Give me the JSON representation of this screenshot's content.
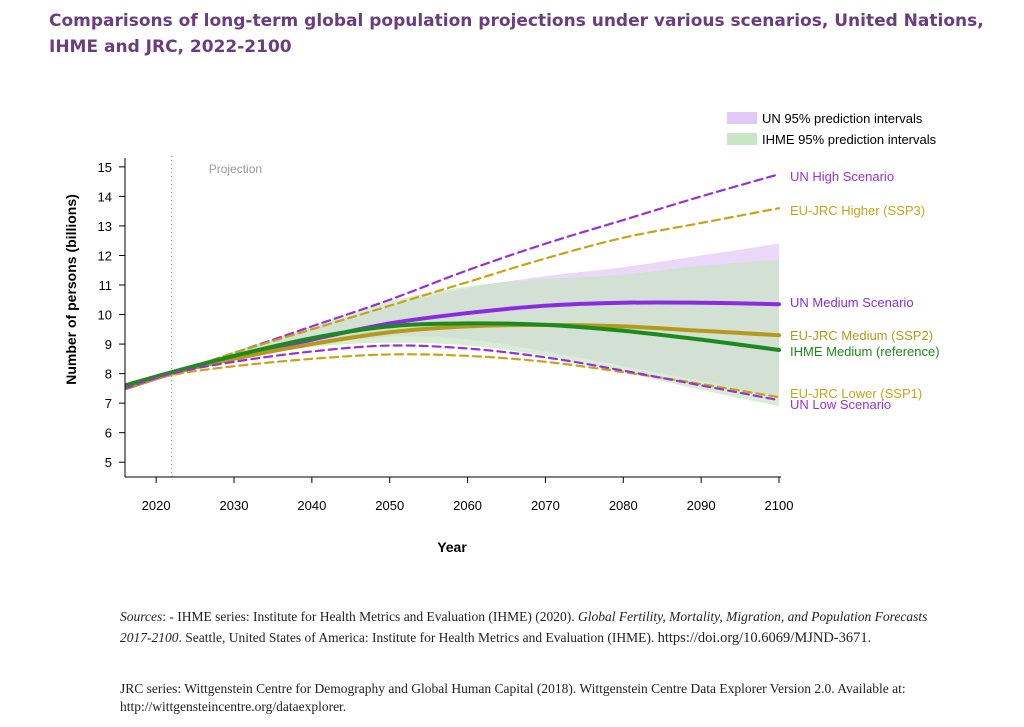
{
  "title": "Comparisons of long-term global population projections under various scenarios, United Nations, IHME and JRC, 2022-2100",
  "chart_data": {
    "type": "line",
    "xlabel": "Year",
    "ylabel": "Number of persons (billions)",
    "xlim": [
      2016,
      2100
    ],
    "ylim": [
      4.5,
      15.3
    ],
    "xticks": [
      2020,
      2030,
      2040,
      2050,
      2060,
      2070,
      2080,
      2090,
      2100
    ],
    "yticks": [
      5,
      6,
      7,
      8,
      9,
      10,
      11,
      12,
      13,
      14,
      15
    ],
    "projection_start": 2022,
    "projection_label": "Projection",
    "legend": [
      {
        "label": "UN 95% prediction intervals",
        "color": "#e2c8f7"
      },
      {
        "label": "IHME 95% prediction intervals",
        "color": "#c7e6c4"
      }
    ],
    "bands": [
      {
        "name": "UN 95% prediction intervals",
        "color": "#e2c8f7",
        "x": [
          2022,
          2030,
          2040,
          2050,
          2060,
          2070,
          2080,
          2090,
          2100
        ],
        "lower": [
          7.95,
          8.45,
          8.95,
          9.25,
          9.15,
          8.75,
          8.25,
          7.75,
          7.2
        ],
        "upper": [
          8.0,
          8.75,
          9.55,
          10.3,
          10.9,
          11.3,
          11.6,
          12.0,
          12.4
        ]
      },
      {
        "name": "IHME 95% prediction intervals",
        "color": "#c7e6c4",
        "x": [
          2022,
          2030,
          2040,
          2050,
          2060,
          2070,
          2080,
          2090,
          2100
        ],
        "lower": [
          7.95,
          8.45,
          8.9,
          9.05,
          8.95,
          8.6,
          8.05,
          7.45,
          6.9
        ],
        "upper": [
          8.0,
          8.75,
          9.6,
          10.45,
          10.95,
          11.2,
          11.35,
          11.65,
          11.85
        ]
      }
    ],
    "series": [
      {
        "name": "UN High Scenario",
        "color": "#9b30d9",
        "style": "dashed",
        "x": [
          2016,
          2022,
          2030,
          2040,
          2050,
          2060,
          2070,
          2080,
          2090,
          2100
        ],
        "y": [
          7.5,
          8.0,
          8.7,
          9.6,
          10.5,
          11.5,
          12.4,
          13.2,
          14.0,
          14.75
        ]
      },
      {
        "name": "EU-JRC Higher (SSP3)",
        "color": "#c8a415",
        "style": "dashed",
        "x": [
          2016,
          2022,
          2030,
          2040,
          2050,
          2060,
          2070,
          2080,
          2090,
          2100
        ],
        "y": [
          7.5,
          8.0,
          8.7,
          9.5,
          10.3,
          11.1,
          11.9,
          12.6,
          13.1,
          13.6
        ]
      },
      {
        "name": "UN Medium Scenario",
        "color": "#8a2be2",
        "style": "solid",
        "width": 4,
        "x": [
          2016,
          2022,
          2030,
          2040,
          2050,
          2060,
          2070,
          2080,
          2090,
          2100
        ],
        "y": [
          7.5,
          8.0,
          8.55,
          9.15,
          9.7,
          10.05,
          10.3,
          10.4,
          10.4,
          10.35
        ]
      },
      {
        "name": "EU-JRC Medium (SSP2)",
        "color": "#b39a1a",
        "style": "solid",
        "width": 4,
        "x": [
          2016,
          2022,
          2030,
          2040,
          2050,
          2060,
          2070,
          2080,
          2090,
          2100
        ],
        "y": [
          7.5,
          8.0,
          8.5,
          9.0,
          9.4,
          9.6,
          9.65,
          9.6,
          9.45,
          9.3
        ]
      },
      {
        "name": "IHME Medium (reference)",
        "color": "#1d8a1d",
        "style": "solid",
        "width": 4,
        "x": [
          2016,
          2022,
          2030,
          2040,
          2050,
          2060,
          2070,
          2080,
          2090,
          2100
        ],
        "y": [
          7.6,
          8.05,
          8.6,
          9.2,
          9.6,
          9.7,
          9.65,
          9.45,
          9.15,
          8.8
        ]
      },
      {
        "name": "EU-JRC Lower (SSP1)",
        "color": "#c8a415",
        "style": "dashed",
        "x": [
          2016,
          2022,
          2030,
          2040,
          2050,
          2060,
          2070,
          2080,
          2090,
          2100
        ],
        "y": [
          7.5,
          7.95,
          8.25,
          8.5,
          8.65,
          8.6,
          8.4,
          8.05,
          7.65,
          7.2
        ]
      },
      {
        "name": "UN Low Scenario",
        "color": "#9b30d9",
        "style": "dashed",
        "x": [
          2016,
          2022,
          2030,
          2040,
          2050,
          2060,
          2070,
          2080,
          2090,
          2100
        ],
        "y": [
          7.5,
          8.0,
          8.4,
          8.75,
          8.95,
          8.85,
          8.55,
          8.1,
          7.6,
          7.1
        ]
      }
    ]
  },
  "sources": {
    "prefix": "Sources",
    "ihme_intro": ": - IHME series: Institute for Health Metrics and Evaluation (IHME) (2020). ",
    "ihme_title": "Global Fertility, Mortality, Migration, and Population Forecasts 2017-2100",
    "ihme_rest": ". Seattle, United States of America: Institute for Health Metrics and Evaluation (IHME). ",
    "ihme_url": "https://doi.org/10.6069/MJND-3671",
    "ihme_end": ".",
    "jrc": "JRC series: Wittgenstein Centre for Demography and Global Human Capital (2018). Wittgenstein Centre Data Explorer Version 2.0. Available at: http://wittgensteincentre.org/dataexplorer."
  }
}
